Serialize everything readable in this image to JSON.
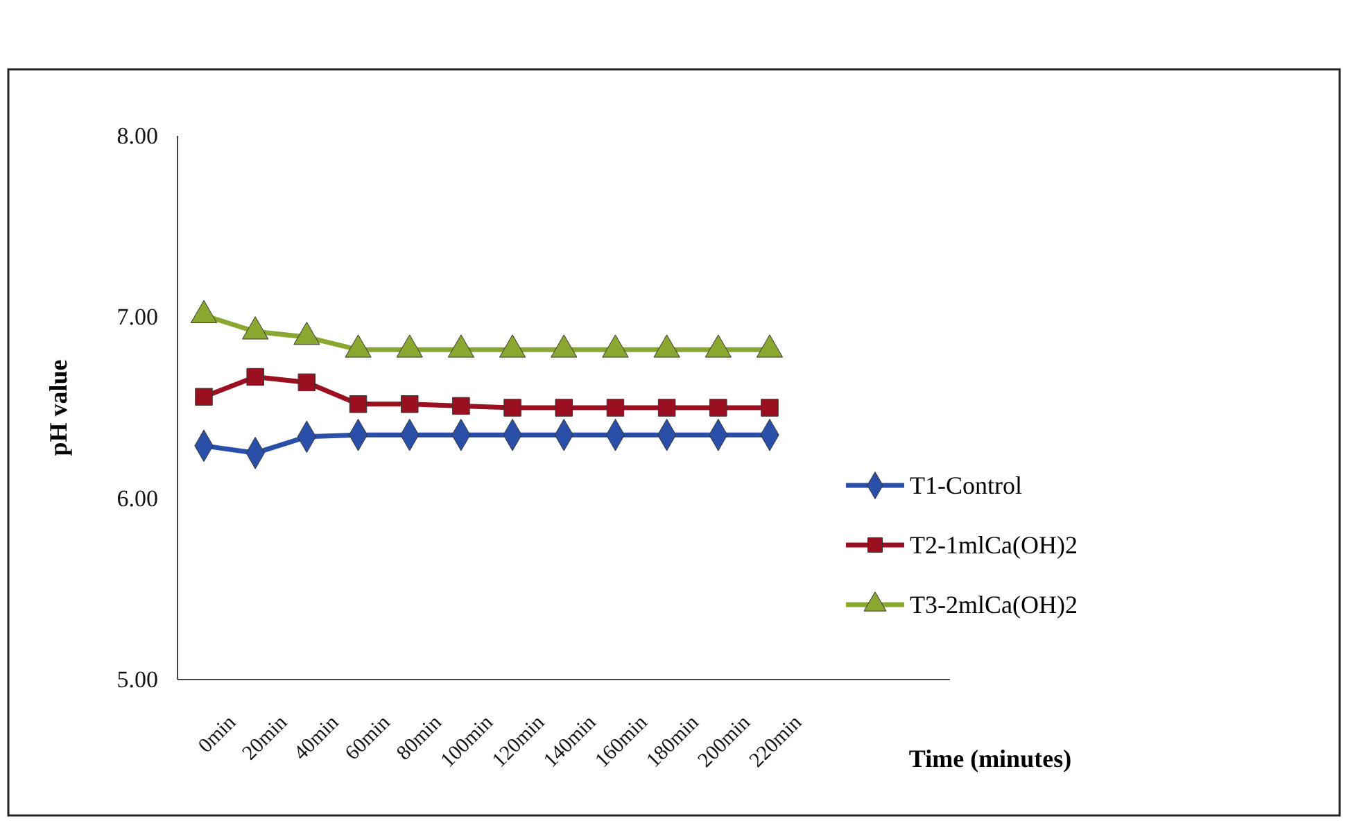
{
  "chart_data": {
    "type": "line",
    "xlabel": "Time (minutes)",
    "ylabel": "pH value",
    "categories": [
      "0min",
      "20min",
      "40min",
      "60min",
      "80min",
      "100min",
      "120min",
      "140min",
      "160min",
      "180min",
      "200min",
      "220min"
    ],
    "ylim": [
      5,
      8
    ],
    "yticks": [
      {
        "value": 5,
        "label": "5.00"
      },
      {
        "value": 6,
        "label": "6.00"
      },
      {
        "value": 7,
        "label": "7.00"
      },
      {
        "value": 8,
        "label": "8.00"
      }
    ],
    "grid": false,
    "legend": "right",
    "line_style": "solid",
    "series": [
      {
        "name": "T1-Control",
        "color": "#2a4fa8",
        "marker": "diamond",
        "values": [
          6.29,
          6.25,
          6.34,
          6.35,
          6.35,
          6.35,
          6.35,
          6.35,
          6.35,
          6.35,
          6.35,
          6.35
        ]
      },
      {
        "name": "T2-1mlCa(OH)2",
        "color": "#9b1020",
        "marker": "square",
        "values": [
          6.56,
          6.67,
          6.64,
          6.52,
          6.52,
          6.51,
          6.5,
          6.5,
          6.5,
          6.5,
          6.5,
          6.5
        ]
      },
      {
        "name": "T3-2mlCa(OH)2",
        "color": "#8aa830",
        "marker": "triangle",
        "values": [
          7.01,
          6.92,
          6.89,
          6.82,
          6.82,
          6.82,
          6.82,
          6.82,
          6.82,
          6.82,
          6.82,
          6.82
        ]
      }
    ]
  }
}
